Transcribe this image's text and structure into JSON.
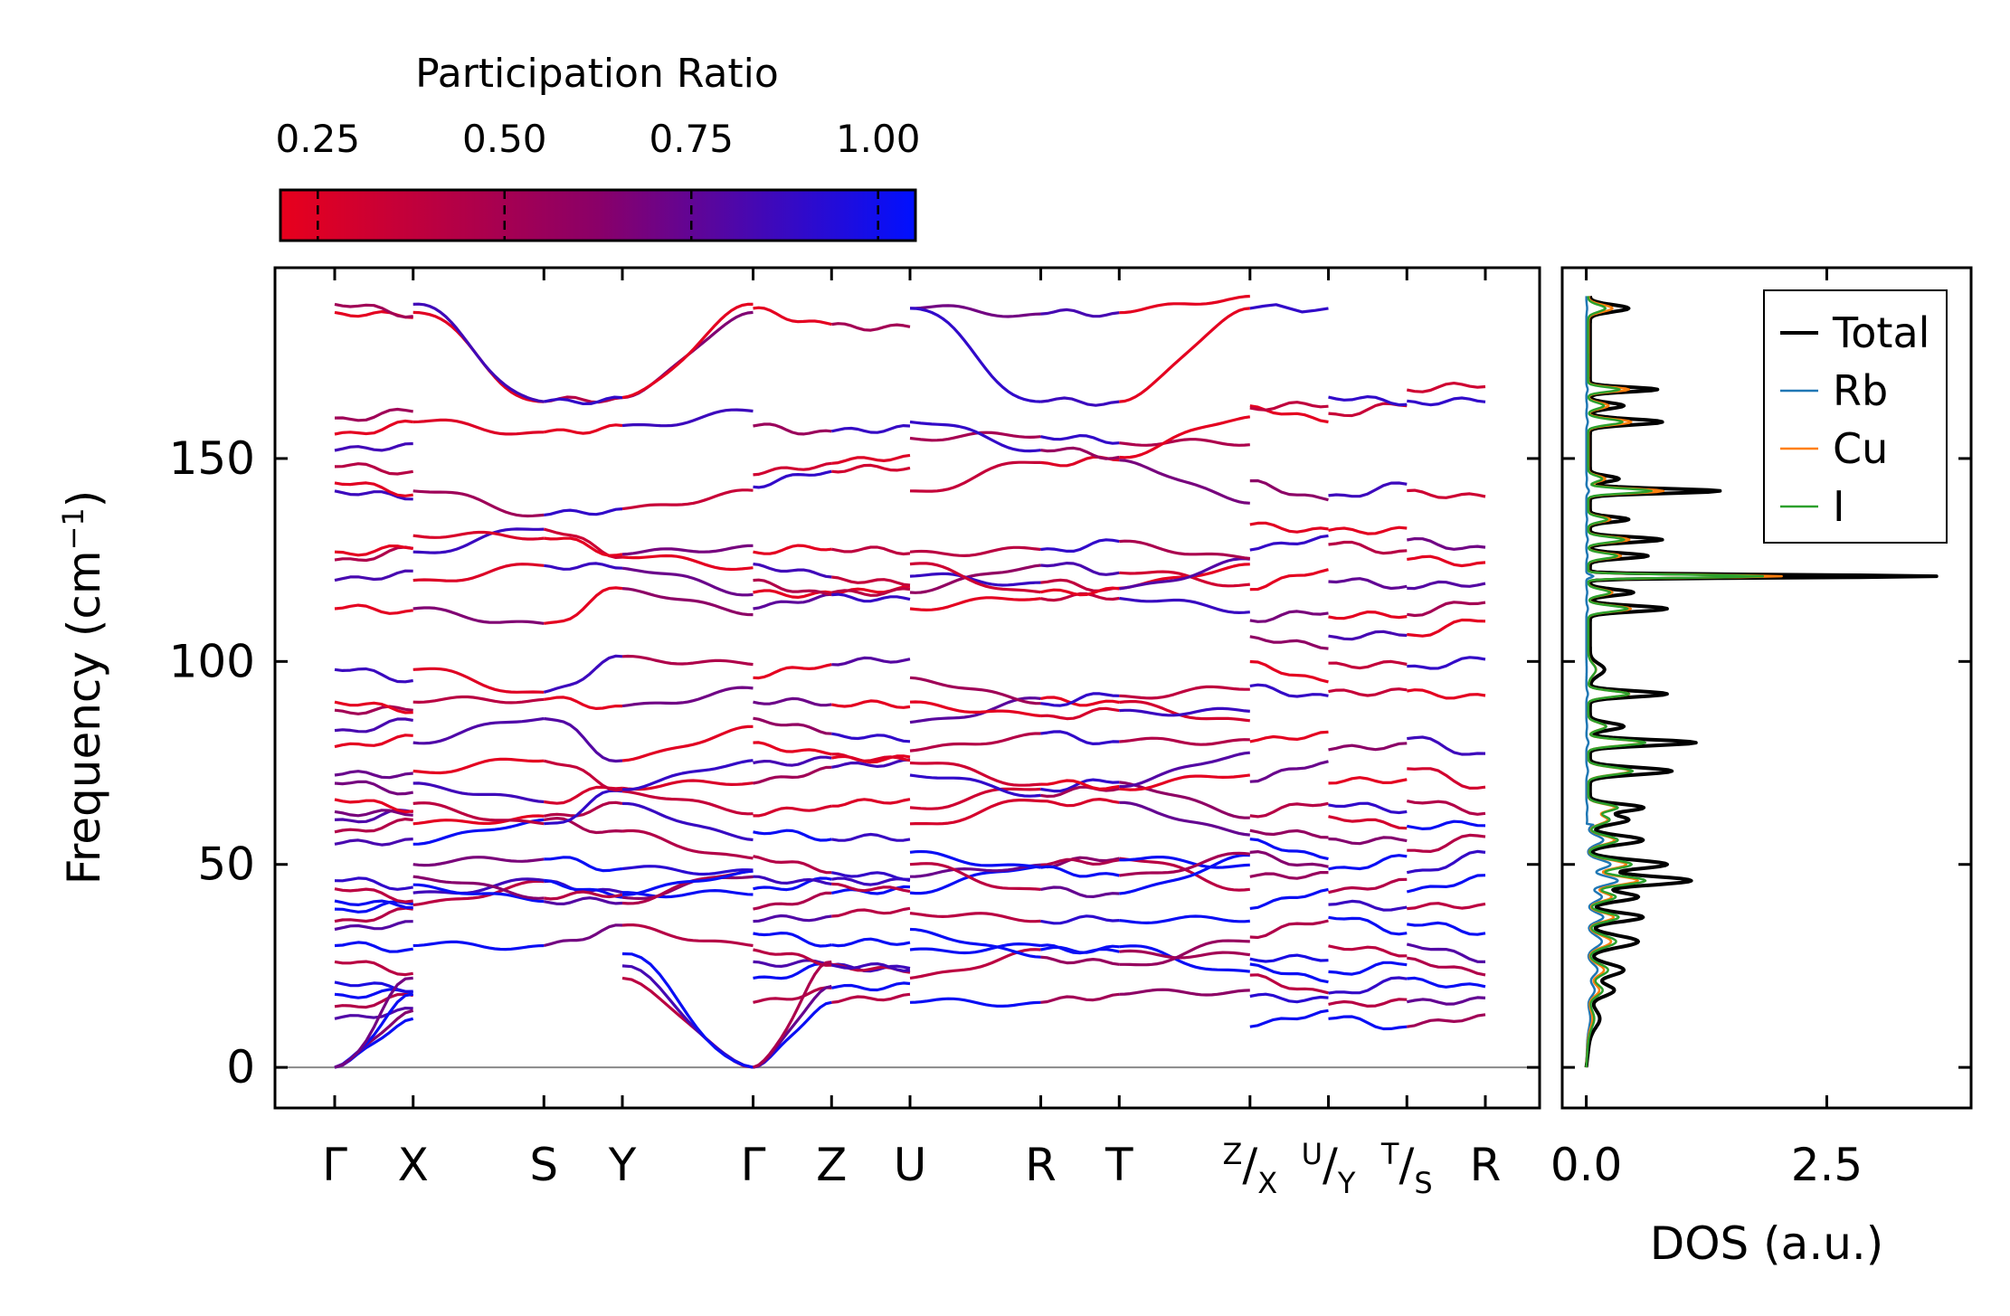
{
  "chart_data": [
    {
      "type": "line",
      "name": "phonon-band-structure",
      "ylabel_main": "Frequency (cm",
      "ylabel_sup": "−1",
      "ylabel_close": ")",
      "ylim": [
        -10,
        197
      ],
      "yticks": [
        {
          "value": 0,
          "label": "0"
        },
        {
          "value": 50,
          "label": "50"
        },
        {
          "value": 100,
          "label": "100"
        },
        {
          "value": 150,
          "label": "150"
        }
      ],
      "kpoints": [
        {
          "name": "kpt-gamma-1",
          "x": 0.0,
          "label": "Γ"
        },
        {
          "name": "kpt-x",
          "x": 0.12,
          "label": "X"
        },
        {
          "name": "kpt-s",
          "x": 0.32,
          "label": "S"
        },
        {
          "name": "kpt-y",
          "x": 0.44,
          "label": "Y"
        },
        {
          "name": "kpt-gamma-2",
          "x": 0.64,
          "label": "Γ"
        },
        {
          "name": "kpt-z",
          "x": 0.76,
          "label": "Z"
        },
        {
          "name": "kpt-u",
          "x": 0.88,
          "label": "U"
        },
        {
          "name": "kpt-r-1",
          "x": 1.08,
          "label": "R"
        },
        {
          "name": "kpt-t",
          "x": 1.2,
          "label": "T"
        },
        {
          "name": "kpt-zx",
          "x": 1.4,
          "label": "",
          "top": "Z",
          "bottom": "X"
        },
        {
          "name": "kpt-uy",
          "x": 1.52,
          "label": "",
          "top": "U",
          "bottom": "Y"
        },
        {
          "name": "kpt-ts",
          "x": 1.64,
          "label": "",
          "top": "T",
          "bottom": "S"
        },
        {
          "name": "kpt-r-2",
          "x": 1.76,
          "label": "R"
        }
      ],
      "segment_breaks": [
        0.64,
        1.4,
        1.52,
        1.64
      ],
      "colorbar": {
        "title": "Participation Ratio",
        "range": [
          0.2,
          1.05
        ],
        "ticks": [
          {
            "value": 0.25,
            "label": "0.25"
          },
          {
            "value": 0.5,
            "label": "0.50"
          },
          {
            "value": 0.75,
            "label": "0.75"
          },
          {
            "value": 1.0,
            "label": "1.00"
          }
        ],
        "color_low": "#e8001c",
        "color_mid": "#8a0068",
        "color_high": "#0010ff"
      },
      "bands_gamma_x": [
        0,
        12,
        15,
        18,
        21,
        26,
        30,
        34,
        36,
        39,
        41,
        44,
        46,
        55,
        58,
        61,
        63,
        66,
        70,
        72,
        79,
        83,
        88,
        90,
        98,
        113,
        120,
        125,
        127,
        142,
        144,
        148,
        152,
        156,
        160,
        186,
        188
      ],
      "bands_between": [
        30,
        40,
        43,
        45,
        47,
        50,
        55,
        60,
        65,
        70,
        73,
        80,
        90,
        98,
        113,
        120,
        127,
        131,
        142,
        159
      ],
      "bands_gamma_z": [
        0,
        16,
        22,
        26,
        29,
        33,
        36,
        39,
        44,
        47,
        52,
        58,
        62,
        70,
        75,
        80,
        86,
        90,
        96,
        113,
        117,
        120,
        124,
        127,
        143,
        146,
        158,
        187
      ],
      "bands_z_r": [
        16,
        22,
        29,
        34,
        38,
        43,
        47,
        50,
        53,
        60,
        64,
        72,
        75,
        78,
        85,
        90,
        96,
        113,
        117,
        121,
        124,
        127,
        142,
        155,
        159,
        187
      ],
      "bands_tail": [
        10,
        15,
        20,
        25,
        29,
        35,
        40,
        45,
        50,
        55,
        60,
        65,
        72,
        79,
        91,
        98,
        107,
        113,
        120,
        127,
        131,
        142,
        163,
        165
      ]
    },
    {
      "type": "line",
      "name": "density-of-states",
      "xlabel": "DOS (a.u.)",
      "xlim": [
        -0.25,
        4.0
      ],
      "ylim": [
        -10,
        197
      ],
      "xticks": [
        {
          "value": 0.0,
          "label": "0.0"
        },
        {
          "value": 2.5,
          "label": "2.5"
        }
      ],
      "legend_position": "top-right",
      "series": [
        {
          "name": "Total",
          "color": "#000000",
          "width": 4
        },
        {
          "name": "Rb",
          "color": "#1f77b4",
          "width": 2.5
        },
        {
          "name": "Cu",
          "color": "#ff7f0e",
          "width": 2.5
        },
        {
          "name": "I",
          "color": "#2ca02c",
          "width": 2.5
        }
      ],
      "total_peaks": [
        {
          "f": 12,
          "a": 0.1,
          "w": 3
        },
        {
          "f": 19,
          "a": 0.25,
          "w": 2
        },
        {
          "f": 24,
          "a": 0.35,
          "w": 2
        },
        {
          "f": 31,
          "a": 0.5,
          "w": 2
        },
        {
          "f": 37,
          "a": 0.55,
          "w": 1.5
        },
        {
          "f": 42,
          "a": 0.5,
          "w": 1.5
        },
        {
          "f": 46,
          "a": 1.05,
          "w": 1.5
        },
        {
          "f": 50,
          "a": 0.8,
          "w": 1.5
        },
        {
          "f": 56,
          "a": 0.55,
          "w": 1.5
        },
        {
          "f": 61,
          "a": 0.4,
          "w": 1.5
        },
        {
          "f": 64,
          "a": 0.55,
          "w": 1.2
        },
        {
          "f": 73,
          "a": 0.85,
          "w": 1.2
        },
        {
          "f": 80,
          "a": 1.1,
          "w": 1.0
        },
        {
          "f": 84,
          "a": 0.35,
          "w": 1.2
        },
        {
          "f": 92,
          "a": 0.8,
          "w": 1.0
        },
        {
          "f": 98,
          "a": 0.15,
          "w": 2
        },
        {
          "f": 113,
          "a": 0.8,
          "w": 1.0
        },
        {
          "f": 117,
          "a": 0.45,
          "w": 1.0
        },
        {
          "f": 121,
          "a": 3.6,
          "w": 0.5
        },
        {
          "f": 126,
          "a": 0.6,
          "w": 0.9
        },
        {
          "f": 130,
          "a": 0.75,
          "w": 0.9
        },
        {
          "f": 135,
          "a": 0.4,
          "w": 0.9
        },
        {
          "f": 142,
          "a": 1.35,
          "w": 0.8
        },
        {
          "f": 145,
          "a": 0.3,
          "w": 1.0
        },
        {
          "f": 159,
          "a": 0.75,
          "w": 1.0
        },
        {
          "f": 163,
          "a": 0.35,
          "w": 1.0
        },
        {
          "f": 167,
          "a": 0.7,
          "w": 0.8
        },
        {
          "f": 187,
          "a": 0.4,
          "w": 1.2
        }
      ],
      "baseline": 0.04,
      "low_freq_onset": 8,
      "rb_fraction_low": 0.3,
      "rb_fraction_high": 0.02,
      "cu_fraction_low": 0.45,
      "cu_fraction_high": 0.62,
      "i_fraction_low": 0.6,
      "i_fraction_high": 0.45,
      "rb_cutoff": 60
    }
  ]
}
